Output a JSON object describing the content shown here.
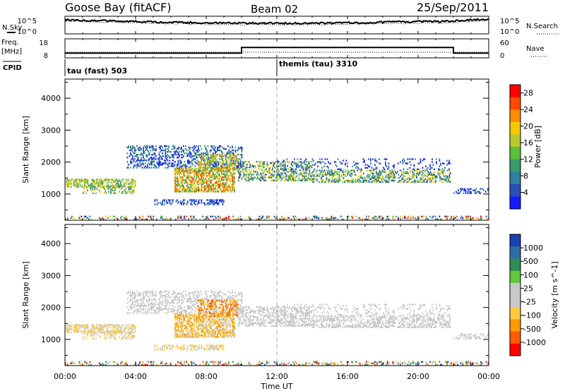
{
  "header": {
    "station": "Goose Bay (fitACF)",
    "beam": "Beam 02",
    "date": "25/Sep/2011"
  },
  "side_labels": {
    "nsky": "N.Sky",
    "freq": "Freq.",
    "mhz": "[MHz]",
    "cpid": "CPID",
    "nsearch": "N.Search",
    "nave": "Nave"
  },
  "cpid_segments": [
    {
      "label": "tau (fast) 503",
      "start_hour": 0
    },
    {
      "label": "themis (tau) 3310",
      "start_hour": 12
    }
  ],
  "colors": {
    "noise": "#000000",
    "power_scale": [
      "#1a1aff",
      "#2a4fb8",
      "#2f7fa0",
      "#3a9a6a",
      "#5bbf3a",
      "#b8c92a",
      "#f5c800",
      "#ff8c00",
      "#ff4a00",
      "#ff0000"
    ],
    "velocity_scale": [
      "#ff0000",
      "#ff5a00",
      "#ff9a00",
      "#ffcc40",
      "#c8c8c8",
      "#c8c8c8",
      "#5fc83c",
      "#2e8b57",
      "#2f6ea5",
      "#1a3fb0"
    ]
  },
  "chart_data": [
    {
      "type": "line",
      "panel": "noise",
      "series": [
        {
          "name": "N.Sky"
        },
        {
          "name": "N.Search"
        }
      ],
      "y_left_ticks": [
        "10^5",
        "10^0"
      ],
      "y_right_ticks": [
        "10^5",
        "10^0"
      ],
      "xlim_hours": [
        0,
        24
      ]
    },
    {
      "type": "line",
      "panel": "frequency",
      "series": [
        {
          "name": "Freq.",
          "x_hours": [
            0,
            10,
            10,
            22,
            22,
            24
          ],
          "values": [
            10.5,
            10.5,
            13.5,
            13.5,
            10.5,
            10.5
          ]
        },
        {
          "name": "Nave"
        }
      ],
      "y_left_ticks": [
        "18",
        "8"
      ],
      "y_right_ticks": [
        "60",
        "0"
      ],
      "ylim_left": [
        8,
        18
      ],
      "xlim_hours": [
        0,
        24
      ]
    },
    {
      "type": "heatmap",
      "panel": "power",
      "ylabel": "Slant Range [km]",
      "y_ticks": [
        1000,
        2000,
        3000,
        4000
      ],
      "ylim": [
        180,
        4600
      ],
      "xlim_hours": [
        0,
        24
      ],
      "colorbar_label": "Power [dB]",
      "colorbar_ticks": [
        4,
        8,
        12,
        16,
        20,
        24,
        28
      ],
      "colorbar_range": [
        0,
        30
      ]
    },
    {
      "type": "heatmap",
      "panel": "velocity",
      "ylabel": "Slant Range [km]",
      "y_ticks": [
        1000,
        2000,
        3000,
        4000
      ],
      "ylim": [
        180,
        4600
      ],
      "xlim_hours": [
        0,
        24
      ],
      "xlabel": "Time UT",
      "x_ticks": [
        "00:00",
        "04:00",
        "08:00",
        "12:00",
        "16:00",
        "20:00",
        "00:00"
      ],
      "colorbar_label": "Velocity [m s^-1]",
      "colorbar_ticks": [
        "1000",
        "500",
        "100",
        "25",
        "-25",
        "-100",
        "-500",
        "-1000"
      ]
    }
  ]
}
